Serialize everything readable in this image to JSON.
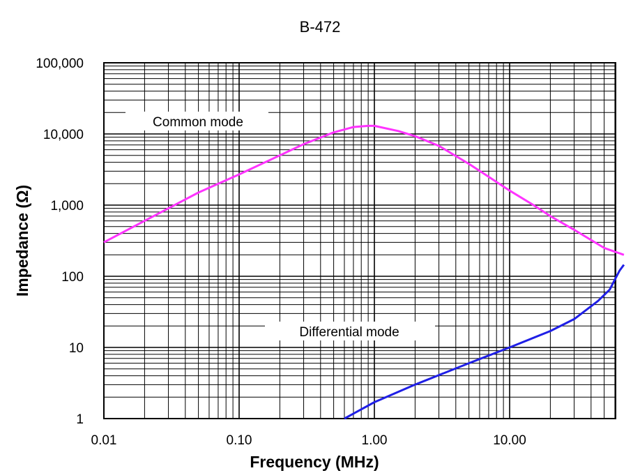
{
  "chart_data": {
    "type": "line",
    "title": "B-472",
    "xlabel": "Frequency (MHz)",
    "ylabel": "Impedance (Ω)",
    "x_scale": "log",
    "y_scale": "log",
    "xlim": [
      0.01,
      70
    ],
    "ylim": [
      1,
      100000
    ],
    "x_ticks": [
      {
        "value": 0.01,
        "label": "0.01"
      },
      {
        "value": 0.1,
        "label": "0.10"
      },
      {
        "value": 1,
        "label": "1.00"
      },
      {
        "value": 10,
        "label": "10.00"
      }
    ],
    "y_ticks": [
      {
        "value": 1,
        "label": "1"
      },
      {
        "value": 10,
        "label": "10"
      },
      {
        "value": 100,
        "label": "100"
      },
      {
        "value": 1000,
        "label": "1,000"
      },
      {
        "value": 10000,
        "label": "10,000"
      },
      {
        "value": 100000,
        "label": "100,000"
      }
    ],
    "grid": true,
    "series": [
      {
        "name": "Common mode",
        "color": "#ff33ff",
        "points": [
          [
            0.01,
            300
          ],
          [
            0.02,
            600
          ],
          [
            0.05,
            1500
          ],
          [
            0.1,
            2700
          ],
          [
            0.2,
            5000
          ],
          [
            0.3,
            7200
          ],
          [
            0.5,
            10500
          ],
          [
            0.7,
            12500
          ],
          [
            0.9,
            13000
          ],
          [
            1.0,
            13000
          ],
          [
            1.5,
            11000
          ],
          [
            2.0,
            9300
          ],
          [
            3.0,
            6800
          ],
          [
            5.0,
            3800
          ],
          [
            7.0,
            2500
          ],
          [
            10.0,
            1600
          ],
          [
            15.0,
            1000
          ],
          [
            20.0,
            700
          ],
          [
            30.0,
            450
          ],
          [
            50.0,
            250
          ],
          [
            70.0,
            200
          ]
        ]
      },
      {
        "name": "Differential mode",
        "color": "#1f1fe6",
        "points": [
          [
            0.6,
            1.0
          ],
          [
            1.0,
            1.7
          ],
          [
            2.0,
            3.0
          ],
          [
            5.0,
            6.0
          ],
          [
            10.0,
            10.0
          ],
          [
            20.0,
            17.0
          ],
          [
            30.0,
            25.0
          ],
          [
            45.0,
            45.0
          ],
          [
            55.0,
            65.0
          ],
          [
            60.0,
            90.0
          ],
          [
            65.0,
            120.0
          ],
          [
            70.0,
            145.0
          ]
        ]
      }
    ]
  }
}
